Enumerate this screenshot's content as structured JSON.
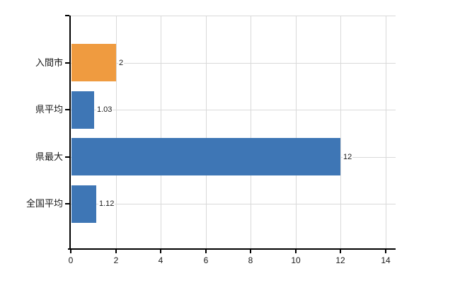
{
  "chart_data": {
    "type": "bar",
    "orientation": "horizontal",
    "title": "",
    "xlabel": "",
    "ylabel": "",
    "categories": [
      "入間市",
      "県平均",
      "県最大",
      "全国平均"
    ],
    "values": [
      2,
      1.03,
      12,
      1.12
    ],
    "value_labels": [
      "2",
      "1.03",
      "12",
      "1.12"
    ],
    "bar_colors": [
      "#EF9B40",
      "#3E76B5",
      "#3E76B5",
      "#3E76B5"
    ],
    "x_ticks": [
      0,
      2,
      4,
      6,
      8,
      10,
      12,
      14
    ],
    "x_tick_labels": [
      "0",
      "2",
      "4",
      "6",
      "8",
      "10",
      "12",
      "14"
    ],
    "xlim": [
      0,
      14
    ],
    "grid": true,
    "legend": "none",
    "colors": {
      "highlight_bar": "#EF9B40",
      "default_bar": "#3E76B5",
      "grid": "#D9D9D9",
      "axis": "#000000",
      "text": "#1A1A1A",
      "background": "#FFFFFF"
    }
  }
}
